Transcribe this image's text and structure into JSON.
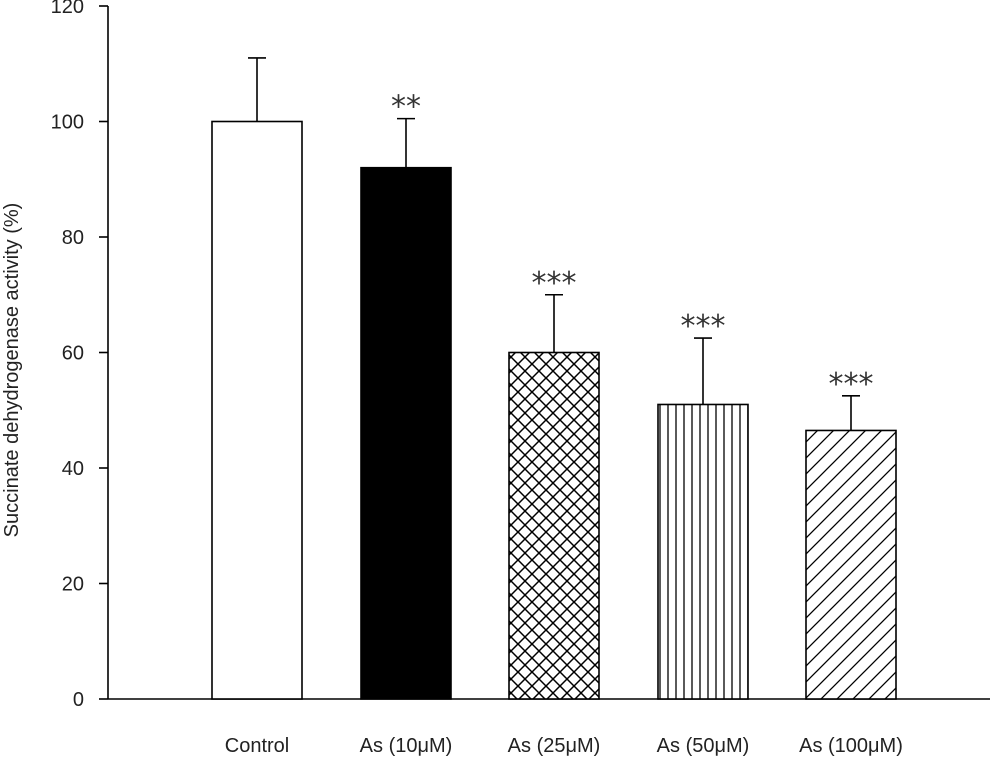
{
  "chart_data": {
    "type": "bar",
    "title": "",
    "xlabel": "",
    "ylabel": "Succinate dehydrogenase activity (%)",
    "ylim": [
      0,
      120
    ],
    "yticks": [
      "0",
      "20",
      "40",
      "60",
      "80",
      "100",
      "120"
    ],
    "categories": [
      "Control",
      "As (10μM)",
      "As (25μM)",
      "As (50μM)",
      "As (100μM)"
    ],
    "values": [
      100,
      92,
      60,
      51,
      46.5
    ],
    "error_upper": [
      11,
      8.5,
      10,
      11.5,
      6
    ],
    "significance": [
      "",
      "**",
      "***",
      "***",
      "***"
    ],
    "fills": [
      "white",
      "black",
      "crosshatch",
      "vertical-lines",
      "diagonal-lines"
    ],
    "grid": false,
    "legend": "none"
  }
}
